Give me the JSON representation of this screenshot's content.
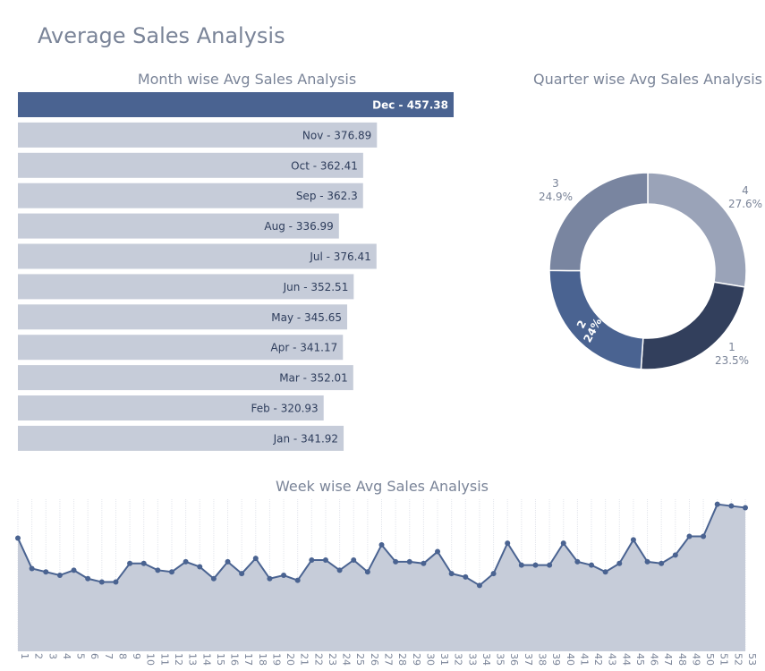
{
  "page": {
    "title": "Average Sales Analysis"
  },
  "colors": {
    "highlight": "#4a6391",
    "bar": "#c6ccd9",
    "bar_text": "#2e3d5c",
    "area_fill": "#c6ccd9",
    "line": "#4a6391",
    "grid": "#e3e6ec",
    "title_text": "#7a8498",
    "pie": {
      "1": "#323f5c",
      "2": "#4a6391",
      "3": "#7985a0",
      "4": "#9aa3b8"
    }
  },
  "chart_data": [
    {
      "type": "bar",
      "orientation": "horizontal",
      "title": "Month wise Avg Sales Analysis",
      "categories": [
        "Dec",
        "Nov",
        "Oct",
        "Sep",
        "Aug",
        "Jul",
        "Jun",
        "May",
        "Apr",
        "Mar",
        "Feb",
        "Jan"
      ],
      "values": [
        457.38,
        376.89,
        362.41,
        362.3,
        336.99,
        376.41,
        352.51,
        345.65,
        341.17,
        352.01,
        320.93,
        341.92
      ],
      "labels": [
        "Dec - 457.38",
        "Nov - 376.89",
        "Oct - 362.41",
        "Sep - 362.3",
        "Aug - 336.99",
        "Jul - 376.41",
        "Jun - 352.51",
        "May - 345.65",
        "Apr - 341.17",
        "Mar - 352.01",
        "Feb - 320.93",
        "Jan - 341.92"
      ],
      "highlight": "Dec",
      "xlim": [
        0,
        457.38
      ]
    },
    {
      "type": "pie",
      "hole": true,
      "title": "Quarter wise Avg Sales Analysis",
      "slices": [
        {
          "label": "1",
          "percent": 23.5,
          "display": "23.5%"
        },
        {
          "label": "2",
          "percent": 24.0,
          "display": "24%"
        },
        {
          "label": "3",
          "percent": 24.9,
          "display": "24.9%"
        },
        {
          "label": "4",
          "percent": 27.6,
          "display": "27.6%"
        }
      ]
    },
    {
      "type": "area",
      "title": "Week wise Avg Sales Analysis",
      "x": [
        "1",
        "2",
        "3",
        "4",
        "5",
        "6",
        "7",
        "8",
        "9",
        "10",
        "11",
        "12",
        "13",
        "14",
        "15",
        "16",
        "17",
        "18",
        "19",
        "20",
        "21",
        "22",
        "23",
        "24",
        "25",
        "26",
        "27",
        "28",
        "29",
        "30",
        "31",
        "32",
        "33",
        "34",
        "35",
        "36",
        "37",
        "38",
        "39",
        "40",
        "41",
        "42",
        "43",
        "44",
        "45",
        "46",
        "47",
        "48",
        "49",
        "50",
        "51",
        "52",
        "53"
      ],
      "values": [
        357,
        339,
        337,
        335,
        338,
        333,
        331,
        331,
        342,
        342,
        338,
        337,
        343,
        340,
        333,
        343,
        336,
        345,
        333,
        335,
        332,
        344,
        344,
        338,
        344,
        337,
        353,
        343,
        343,
        342,
        349,
        336,
        334,
        329,
        336,
        354,
        341,
        341,
        341,
        354,
        343,
        341,
        337,
        342,
        356,
        343,
        342,
        347,
        358,
        358,
        377,
        376,
        375
      ],
      "ylim": [
        290,
        380
      ],
      "grid": "vertical"
    }
  ]
}
